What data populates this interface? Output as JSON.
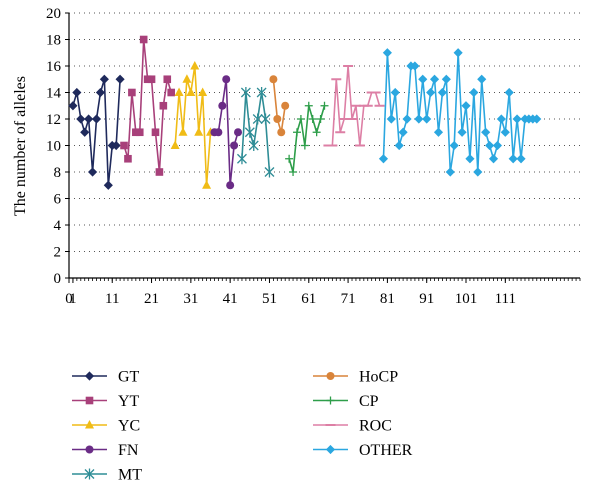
{
  "chart_data": {
    "type": "line",
    "title": "",
    "xlabel": "",
    "ylabel": "The number of alleles",
    "xlim": [
      0,
      130
    ],
    "ylim": [
      0,
      20
    ],
    "x_ticks": [
      0,
      1,
      11,
      21,
      31,
      41,
      51,
      61,
      71,
      81,
      91,
      101,
      111
    ],
    "x_tick_labels": [
      "0",
      "1",
      "11",
      "21",
      "31",
      "41",
      "51",
      "61",
      "71",
      "81",
      "91",
      "101",
      "111"
    ],
    "y_ticks": [
      0,
      2,
      4,
      6,
      8,
      10,
      12,
      14,
      16,
      18,
      20
    ],
    "y_tick_labels": [
      "0",
      "2",
      "4",
      "6",
      "8",
      "10",
      "12",
      "14",
      "16",
      "18",
      "20"
    ],
    "grid": "dotted-horizontal",
    "legend_position": "bottom",
    "series": [
      {
        "name": "GT",
        "color": "#1f2a5c",
        "marker": "diamond",
        "x": [
          1,
          2,
          3,
          4,
          5,
          6,
          7,
          8,
          9,
          10,
          11,
          12,
          13
        ],
        "y": [
          13,
          14,
          12,
          11,
          12,
          8,
          12,
          14,
          15,
          7,
          10,
          10,
          15
        ]
      },
      {
        "name": "YT",
        "color": "#a8407a",
        "marker": "square",
        "x": [
          14,
          15,
          16,
          17,
          18,
          19,
          20,
          21,
          22,
          23,
          24,
          25,
          26
        ],
        "y": [
          10,
          9,
          14,
          11,
          11,
          18,
          15,
          15,
          11,
          8,
          13,
          15,
          14
        ]
      },
      {
        "name": "YC",
        "color": "#f0bc16",
        "marker": "triangle",
        "x": [
          27,
          28,
          29,
          30,
          31,
          32,
          33,
          34,
          35,
          36
        ],
        "y": [
          10,
          14,
          11,
          15,
          14,
          16,
          11,
          14,
          7,
          11
        ]
      },
      {
        "name": "FN",
        "color": "#6a2c86",
        "marker": "circle",
        "x": [
          37,
          38,
          39,
          40,
          41,
          42,
          43
        ],
        "y": [
          11,
          11,
          13,
          15,
          7,
          10,
          11
        ]
      },
      {
        "name": "MT",
        "color": "#2f8d96",
        "marker": "star",
        "x": [
          44,
          45,
          46,
          47,
          48,
          49,
          50,
          51
        ],
        "y": [
          9,
          14,
          11,
          10,
          12,
          14,
          12,
          8
        ]
      },
      {
        "name": "HoCP",
        "color": "#d9843a",
        "marker": "circle",
        "x": [
          52,
          53,
          54,
          55
        ],
        "y": [
          15,
          12,
          11,
          13
        ]
      },
      {
        "name": "CP",
        "color": "#2e9e4a",
        "marker": "plus",
        "x": [
          56,
          57,
          58,
          59,
          60,
          61,
          62,
          63,
          64,
          65
        ],
        "y": [
          9,
          8,
          11,
          12,
          10,
          13,
          12,
          11,
          12,
          13
        ]
      },
      {
        "name": "ROC",
        "color": "#dd7fa5",
        "marker": "dash",
        "x": [
          66,
          67,
          68,
          69,
          70,
          71,
          72,
          73,
          74,
          75,
          76,
          77,
          78,
          79
        ],
        "y": [
          10,
          10,
          15,
          11,
          12,
          16,
          12,
          13,
          10,
          13,
          13,
          14,
          14,
          13
        ]
      },
      {
        "name": "OTHER",
        "color": "#2ba7e0",
        "marker": "diamond",
        "x": [
          80,
          81,
          82,
          83,
          84,
          85,
          86,
          87,
          88,
          89,
          90,
          91,
          92,
          93,
          94,
          95,
          96,
          97,
          98,
          99,
          100,
          101,
          102,
          103,
          104,
          105,
          106,
          107,
          108,
          109,
          110,
          111,
          112,
          113,
          114,
          115,
          116,
          117,
          118,
          119
        ],
        "y": [
          9,
          17,
          12,
          14,
          10,
          11,
          12,
          16,
          16,
          12,
          15,
          12,
          14,
          15,
          11,
          14,
          15,
          8,
          10,
          17,
          11,
          13,
          9,
          14,
          8,
          15,
          11,
          10,
          9,
          10,
          12,
          11,
          14,
          9,
          12,
          9,
          12,
          12,
          12,
          12
        ]
      }
    ]
  }
}
